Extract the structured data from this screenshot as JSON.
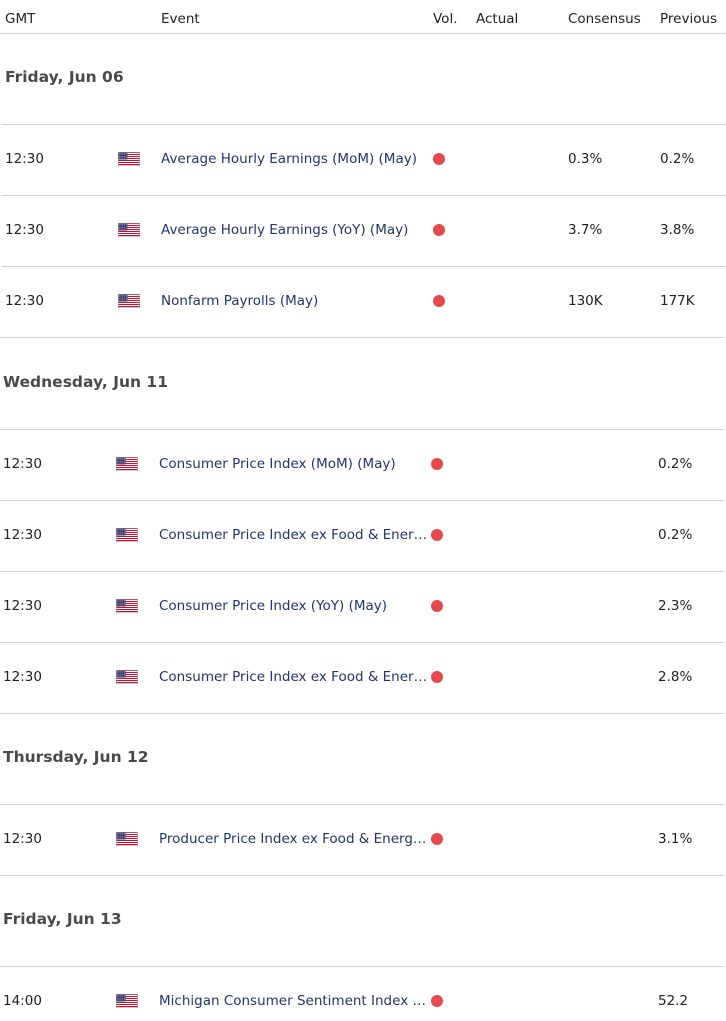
{
  "columns": {
    "gmt": "GMT",
    "event": "Event",
    "vol": "Vol.",
    "actual": "Actual",
    "consensus": "Consensus",
    "previous": "Previous"
  },
  "colors": {
    "high_volatility": "#e5484d"
  },
  "days": [
    {
      "date": "Friday, Jun 06",
      "events": [
        {
          "time": "12:30",
          "flag": "us-flag-icon",
          "name": "Average Hourly Earnings (MoM) (May)",
          "actual": "",
          "consensus": "0.3%",
          "previous": "0.2%"
        },
        {
          "time": "12:30",
          "flag": "us-flag-icon",
          "name": "Average Hourly Earnings (YoY) (May)",
          "actual": "",
          "consensus": "3.7%",
          "previous": "3.8%"
        },
        {
          "time": "12:30",
          "flag": "us-flag-icon",
          "name": "Nonfarm Payrolls (May)",
          "actual": "",
          "consensus": "130K",
          "previous": "177K"
        }
      ]
    },
    {
      "date": "Wednesday, Jun 11",
      "events": [
        {
          "time": "12:30",
          "flag": "us-flag-icon",
          "name": "Consumer Price Index (MoM) (May)",
          "actual": "",
          "consensus": "",
          "previous": "0.2%"
        },
        {
          "time": "12:30",
          "flag": "us-flag-icon",
          "name": "Consumer Price Index ex Food & Ener…",
          "actual": "",
          "consensus": "",
          "previous": "0.2%"
        },
        {
          "time": "12:30",
          "flag": "us-flag-icon",
          "name": "Consumer Price Index (YoY) (May)",
          "actual": "",
          "consensus": "",
          "previous": "2.3%"
        },
        {
          "time": "12:30",
          "flag": "us-flag-icon",
          "name": "Consumer Price Index ex Food & Ener…",
          "actual": "",
          "consensus": "",
          "previous": "2.8%"
        }
      ]
    },
    {
      "date": "Thursday, Jun 12",
      "events": [
        {
          "time": "12:30",
          "flag": "us-flag-icon",
          "name": "Producer Price Index ex Food & Energy…",
          "actual": "",
          "consensus": "",
          "previous": "3.1%"
        }
      ]
    },
    {
      "date": "Friday, Jun 13",
      "events": [
        {
          "time": "14:00",
          "flag": "us-flag-icon",
          "name": "Michigan Consumer Sentiment Index …",
          "actual": "",
          "consensus": "",
          "previous": "52.2"
        }
      ]
    }
  ]
}
